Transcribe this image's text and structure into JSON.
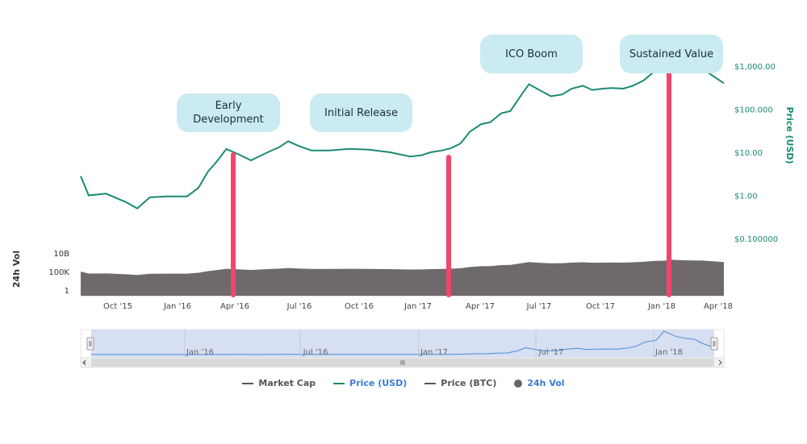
{
  "chart_data": {
    "type": "line",
    "price_axis": {
      "label": "Price (USD)",
      "scale": "log",
      "ticks": [
        "$1,000.00",
        "$100.000",
        "$10.00",
        "$1.00",
        "$0.100000"
      ],
      "range": [
        0.1,
        1000
      ]
    },
    "volume_axis": {
      "label": "24h Vol",
      "ticks": [
        "10B",
        "100K",
        "1"
      ]
    },
    "x_ticks": [
      "Oct '15",
      "Jan '16",
      "Apr '16",
      "Jul '16",
      "Oct '16",
      "Jan '17",
      "Apr '17",
      "Jul '17",
      "Oct '17",
      "Jan '18",
      "Apr '18"
    ],
    "navigator_ticks": [
      "Jan '16",
      "Jul '16",
      "Jan '17",
      "Jul '17",
      "Jan '18"
    ],
    "series": [
      {
        "name": "Price (USD)",
        "color": "#1a8a72",
        "x": [
          "2015-08-08",
          "2015-08-20",
          "2015-09-15",
          "2015-10-15",
          "2015-11-01",
          "2015-11-20",
          "2015-12-15",
          "2016-01-15",
          "2016-02-01",
          "2016-02-15",
          "2016-03-01",
          "2016-03-14",
          "2016-04-01",
          "2016-04-20",
          "2016-05-15",
          "2016-06-01",
          "2016-06-15",
          "2016-07-01",
          "2016-07-20",
          "2016-08-15",
          "2016-09-15",
          "2016-10-15",
          "2016-11-15",
          "2016-12-15",
          "2017-01-01",
          "2017-01-15",
          "2017-02-01",
          "2017-02-15",
          "2017-03-01",
          "2017-03-15",
          "2017-04-01",
          "2017-04-15",
          "2017-05-01",
          "2017-05-15",
          "2017-06-01",
          "2017-06-12",
          "2017-07-01",
          "2017-07-15",
          "2017-08-01",
          "2017-08-15",
          "2017-09-01",
          "2017-09-15",
          "2017-10-01",
          "2017-10-15",
          "2017-11-01",
          "2017-11-15",
          "2017-12-01",
          "2017-12-15",
          "2018-01-01",
          "2018-01-13",
          "2018-02-01",
          "2018-02-15",
          "2018-03-01",
          "2018-03-15",
          "2018-04-01"
        ],
        "values": [
          2.8,
          1.0,
          1.1,
          0.7,
          0.5,
          0.9,
          0.95,
          0.95,
          1.5,
          3.5,
          6.5,
          12.0,
          9.0,
          6.5,
          10.0,
          13.0,
          18.0,
          14.0,
          11.0,
          11.0,
          12.0,
          11.5,
          10.0,
          8.0,
          8.5,
          10.0,
          11.0,
          12.5,
          16.0,
          30.0,
          45.0,
          50.0,
          80.0,
          90.0,
          220.0,
          380.0,
          260.0,
          200.0,
          220.0,
          300.0,
          350.0,
          280.0,
          300.0,
          310.0,
          300.0,
          350.0,
          460.0,
          700.0,
          800.0,
          1300.0,
          1000.0,
          900.0,
          850.0,
          600.0,
          400.0
        ]
      },
      {
        "name": "24h Vol",
        "color": "#6b6b6b"
      }
    ],
    "annotations": [
      {
        "label": "Early Development",
        "x": "2016-03-14"
      },
      {
        "label": "Initial Release",
        "x": ""
      },
      {
        "label": "ICO Boom",
        "x": ""
      },
      {
        "label": "Sustained Value",
        "x": "2018-01-13"
      }
    ],
    "markers": [
      {
        "x": "2016-03-14"
      },
      {
        "x": "2017-02-20"
      },
      {
        "x": "2018-01-13"
      }
    ],
    "legend": [
      {
        "name": "Market Cap",
        "color": "#555555",
        "kind": "line",
        "active": false
      },
      {
        "name": "Price (USD)",
        "color": "#1a8a72",
        "kind": "line",
        "active": true
      },
      {
        "name": "Price (BTC)",
        "color": "#555555",
        "kind": "line",
        "active": false
      },
      {
        "name": "24h Vol",
        "color": "#666666",
        "kind": "dot",
        "active": true
      }
    ],
    "colors": {
      "marker": "#f0466e",
      "callout": "#c9ebf1",
      "axis_accent": "#1a8a72",
      "navigator_fill": "#c9d4ee",
      "navigator_line": "#4a8ed8",
      "legend_active_text": "#3a7bd5"
    }
  },
  "callouts": [
    "Early\nDevelopment",
    "Initial Release",
    "ICO Boom",
    "Sustained Value"
  ]
}
